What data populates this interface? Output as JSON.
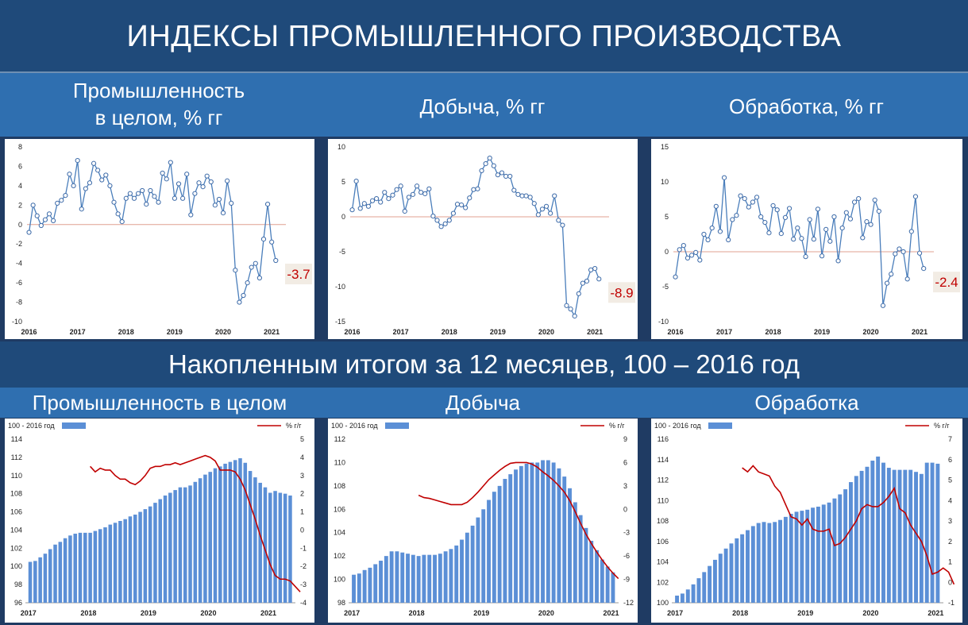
{
  "title": "ИНДЕКСЫ ПРОМЫШЛЕННОГО ПРОИЗВОДСТВА",
  "section1": {
    "labels": [
      "Промышленность\nв целом, % гг",
      "Добыча, % гг",
      "Обработка, % гг"
    ]
  },
  "section2": {
    "title": "Накопленным итогом за 12 месяцев, 100 – 2016 год",
    "labels": [
      "Промышленность в целом",
      "Добыча",
      "Обработка"
    ]
  },
  "colors": {
    "line": "#4a7ebb",
    "zero": "#e0a090",
    "bar": "#5b8fd6",
    "red": "#c00000"
  },
  "chart_data": [
    {
      "type": "line",
      "name": "Промышленность в целом, % гг",
      "ylim": [
        -10,
        8
      ],
      "yticks": [
        -10,
        -8,
        -6,
        -4,
        -2,
        0,
        2,
        4,
        6,
        8
      ],
      "xlabels": [
        "2016",
        "2017",
        "2018",
        "2019",
        "2020",
        "2021"
      ],
      "callout": "-3.7",
      "values": [
        -0.8,
        2.0,
        0.9,
        -0.1,
        0.5,
        1.1,
        0.4,
        2.2,
        2.5,
        3.0,
        5.2,
        4.0,
        6.6,
        1.6,
        3.7,
        4.3,
        6.3,
        5.6,
        4.6,
        5.1,
        4.0,
        2.3,
        1.1,
        0.3,
        2.7,
        3.2,
        2.7,
        3.2,
        3.5,
        2.1,
        3.5,
        2.9,
        2.3,
        5.3,
        4.7,
        6.4,
        2.7,
        4.2,
        2.7,
        5.2,
        1.0,
        3.2,
        4.3,
        3.9,
        5.0,
        4.4,
        2.0,
        2.6,
        1.2,
        4.5,
        2.2,
        -4.7,
        -8.0,
        -7.3,
        -6.0,
        -4.4,
        -4.0,
        -5.5,
        -1.5,
        2.1,
        -1.8,
        -3.7
      ]
    },
    {
      "type": "line",
      "name": "Добыча, % гг",
      "ylim": [
        -15,
        10
      ],
      "yticks": [
        -15,
        -10,
        -5,
        0,
        5,
        10
      ],
      "xlabels": [
        "2016",
        "2017",
        "2018",
        "2019",
        "2020",
        "2021"
      ],
      "callout": "-8.9",
      "values": [
        1.0,
        5.1,
        1.2,
        1.9,
        1.5,
        2.3,
        2.6,
        2.1,
        3.5,
        2.6,
        3.1,
        3.9,
        4.4,
        0.8,
        2.8,
        3.2,
        4.4,
        3.5,
        3.3,
        4.0,
        0.1,
        -0.5,
        -1.4,
        -1.0,
        -0.5,
        0.5,
        1.8,
        1.7,
        1.3,
        2.7,
        3.9,
        4.0,
        6.6,
        7.6,
        8.4,
        7.3,
        6.0,
        6.3,
        5.8,
        5.8,
        3.8,
        3.2,
        3.0,
        3.0,
        2.8,
        1.9,
        0.3,
        1.1,
        1.5,
        0.5,
        3.0,
        -0.5,
        -1.2,
        -12.7,
        -13.2,
        -14.2,
        -11.0,
        -9.5,
        -9.2,
        -7.6,
        -7.4,
        -8.9
      ]
    },
    {
      "type": "line",
      "name": "Обработка, % гг",
      "ylim": [
        -10,
        15
      ],
      "yticks": [
        -10,
        -5,
        0,
        5,
        10,
        15
      ],
      "xlabels": [
        "2016",
        "2017",
        "2018",
        "2019",
        "2020",
        "2021"
      ],
      "callout": "-2.4",
      "values": [
        -3.6,
        0.3,
        0.9,
        -0.9,
        -0.5,
        -0.1,
        -1.2,
        2.5,
        1.7,
        3.4,
        6.5,
        2.9,
        10.6,
        1.7,
        4.6,
        5.2,
        8.0,
        7.6,
        6.4,
        7.1,
        7.8,
        5.0,
        4.2,
        2.7,
        6.6,
        6.0,
        2.6,
        4.9,
        6.2,
        1.8,
        3.4,
        1.9,
        -0.7,
        4.6,
        1.8,
        6.1,
        -0.6,
        3.2,
        1.5,
        5.0,
        -1.3,
        3.4,
        5.6,
        4.7,
        7.1,
        7.6,
        2.0,
        4.3,
        3.9,
        7.4,
        5.8,
        -7.7,
        -4.5,
        -3.2,
        -0.3,
        0.4,
        0.0,
        -3.9,
        2.9,
        7.9,
        -0.2,
        -2.4
      ]
    },
    {
      "type": "bar+line",
      "name": "Промышленность в целом",
      "legend_bar": "100 - 2016 год",
      "legend_line": "% г/г",
      "ylim": [
        96,
        114
      ],
      "yticks": [
        96,
        98,
        100,
        102,
        104,
        106,
        108,
        110,
        112,
        114
      ],
      "y2lim": [
        -4,
        5
      ],
      "y2ticks": [
        -4,
        -3,
        -2,
        -1,
        0,
        1,
        2,
        3,
        4,
        5
      ],
      "xlabels": [
        "2017",
        "2018",
        "2019",
        "2020",
        "2021"
      ],
      "bars": [
        100.5,
        100.6,
        101.0,
        101.4,
        101.9,
        102.4,
        102.7,
        103.1,
        103.4,
        103.6,
        103.7,
        103.7,
        103.7,
        103.9,
        104.1,
        104.3,
        104.6,
        104.8,
        105.0,
        105.2,
        105.5,
        105.7,
        106.0,
        106.3,
        106.6,
        107.0,
        107.4,
        107.8,
        108.1,
        108.4,
        108.7,
        108.7,
        108.9,
        109.3,
        109.7,
        110.1,
        110.4,
        110.8,
        111.0,
        111.3,
        111.5,
        111.7,
        111.9,
        111.4,
        110.5,
        109.8,
        109.2,
        108.7,
        108.1,
        108.3,
        108.1,
        108.0,
        107.8
      ],
      "line_start": 12,
      "line": [
        3.5,
        3.2,
        3.4,
        3.3,
        3.3,
        3.0,
        2.8,
        2.8,
        2.6,
        2.5,
        2.7,
        3.0,
        3.4,
        3.5,
        3.5,
        3.6,
        3.6,
        3.7,
        3.6,
        3.7,
        3.8,
        3.9,
        4.0,
        4.1,
        4.0,
        3.8,
        3.3,
        3.3,
        3.3,
        3.2,
        2.8,
        2.2,
        1.4,
        0.6,
        -0.3,
        -1.1,
        -1.9,
        -2.5,
        -2.7,
        -2.7,
        -2.8,
        -3.1,
        -3.4
      ]
    },
    {
      "type": "bar+line",
      "name": "Добыча",
      "legend_bar": "100 - 2016 год",
      "legend_line": "% г/г",
      "ylim": [
        98,
        112
      ],
      "yticks": [
        98,
        100,
        102,
        104,
        106,
        108,
        110,
        112
      ],
      "y2lim": [
        -12,
        9
      ],
      "y2ticks": [
        -12,
        -9,
        -6,
        -3,
        0,
        3,
        6,
        9
      ],
      "xlabels": [
        "2017",
        "2018",
        "2019",
        "2020",
        "2021"
      ],
      "bars": [
        100.4,
        100.5,
        100.8,
        101.0,
        101.3,
        101.6,
        102.0,
        102.4,
        102.4,
        102.3,
        102.2,
        102.1,
        102.0,
        102.1,
        102.1,
        102.1,
        102.2,
        102.4,
        102.6,
        102.9,
        103.4,
        104.0,
        104.6,
        105.3,
        106.0,
        106.8,
        107.5,
        108.0,
        108.6,
        109.0,
        109.4,
        109.7,
        109.9,
        110.0,
        110.0,
        110.2,
        110.2,
        110.0,
        109.5,
        108.8,
        107.8,
        106.6,
        105.5,
        104.4,
        103.3,
        102.5,
        101.7,
        101.1,
        100.6
      ],
      "line_start": 12,
      "line": [
        1.8,
        1.5,
        1.4,
        1.2,
        1.0,
        0.8,
        0.6,
        0.6,
        0.6,
        0.9,
        1.5,
        2.2,
        3.0,
        3.8,
        4.4,
        5.0,
        5.5,
        5.9,
        6.0,
        6.0,
        6.0,
        5.8,
        5.4,
        4.8,
        4.3,
        3.7,
        3.0,
        2.2,
        1.1,
        -0.3,
        -1.8,
        -3.2,
        -4.4,
        -5.5,
        -6.5,
        -7.4,
        -8.2,
        -8.9
      ]
    },
    {
      "type": "bar+line",
      "name": "Обработка",
      "legend_bar": "100 - 2016 год",
      "legend_line": "% г/г",
      "ylim": [
        100,
        116
      ],
      "yticks": [
        100,
        102,
        104,
        106,
        108,
        110,
        112,
        114,
        116
      ],
      "y2lim": [
        -1,
        7
      ],
      "y2ticks": [
        -1,
        0,
        1,
        2,
        3,
        4,
        5,
        6,
        7
      ],
      "xlabels": [
        "2017",
        "2018",
        "2019",
        "2020",
        "2021"
      ],
      "bars": [
        100.7,
        100.9,
        101.3,
        101.8,
        102.4,
        103.0,
        103.6,
        104.2,
        104.8,
        105.3,
        105.8,
        106.3,
        106.7,
        107.1,
        107.5,
        107.8,
        107.9,
        107.8,
        107.9,
        108.1,
        108.4,
        108.7,
        108.9,
        109.0,
        109.1,
        109.3,
        109.4,
        109.6,
        109.8,
        110.2,
        110.6,
        111.1,
        111.8,
        112.4,
        112.9,
        113.3,
        113.9,
        114.3,
        113.7,
        113.2,
        113.0,
        113.0,
        113.0,
        113.0,
        112.8,
        112.6,
        113.7,
        113.7,
        113.6
      ],
      "line_start": 12,
      "line": [
        5.6,
        5.4,
        5.7,
        5.4,
        5.3,
        5.2,
        4.7,
        4.4,
        3.8,
        3.2,
        3.1,
        2.8,
        3.1,
        2.6,
        2.5,
        2.5,
        2.6,
        1.8,
        1.9,
        2.2,
        2.6,
        3.0,
        3.6,
        3.8,
        3.7,
        3.7,
        3.9,
        4.2,
        4.6,
        3.6,
        3.4,
        2.8,
        2.4,
        2.0,
        1.3,
        0.4,
        0.5,
        0.7,
        0.5,
        -0.1
      ]
    }
  ]
}
